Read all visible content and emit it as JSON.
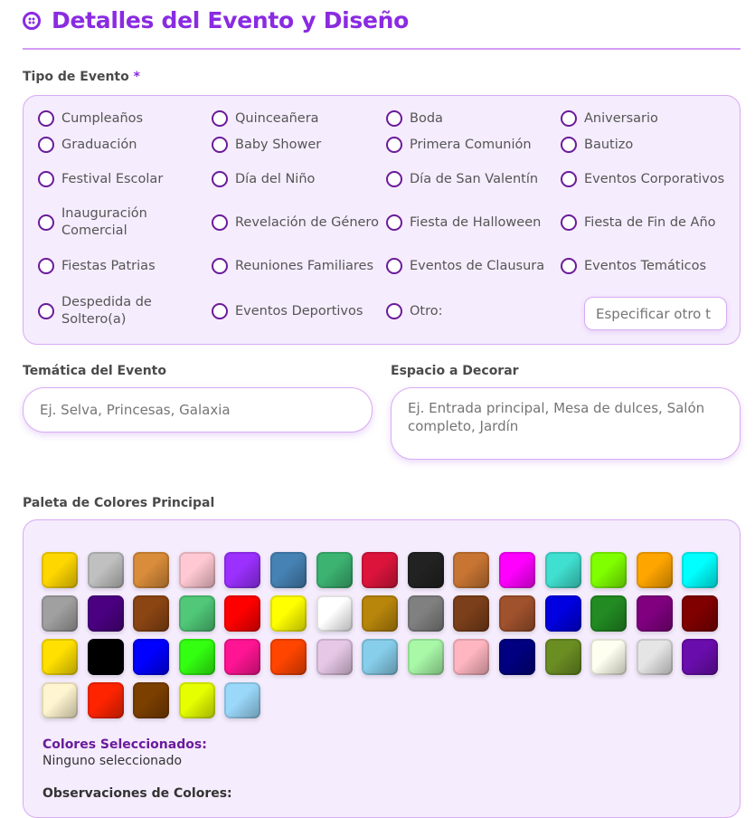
{
  "header": {
    "title": "Detalles del Evento y Diseño",
    "icon": "palette-icon"
  },
  "event_type": {
    "label": "Tipo de Evento",
    "required_mark": "*",
    "options": [
      [
        "Cumpleaños",
        "Quinceañera",
        "Boda",
        "Aniversario"
      ],
      [
        "Graduación",
        "Baby Shower",
        "Primera Comunión",
        "Bautizo"
      ],
      [
        "Festival Escolar",
        "Día del Niño",
        "Día de San Valentín",
        "Eventos Corporativos"
      ],
      [
        "Inauguración Comercial",
        "Revelación de Género",
        "Fiesta de Halloween",
        "Fiesta de Fin de Año"
      ],
      [
        "Fiestas Patrias",
        "Reuniones Familiares",
        "Eventos de Clausura",
        "Eventos Temáticos"
      ],
      [
        "Despedida de Soltero(a)",
        "Eventos Deportivos",
        "Otro:"
      ]
    ],
    "other_placeholder": "Especificar otro t"
  },
  "theme": {
    "label": "Temática del Evento",
    "placeholder": "Ej. Selva, Princesas, Galaxia",
    "value": ""
  },
  "space": {
    "label": "Espacio a Decorar",
    "placeholder": "Ej. Entrada principal, Mesa de dulces, Salón completo, Jardín",
    "value": ""
  },
  "palette": {
    "label": "Paleta de Colores Principal",
    "colors": [
      "#ffd700",
      "#c0c0c0",
      "#d98c3a",
      "#ffc8d2",
      "#9b30ff",
      "#4682b4",
      "#3cb371",
      "#dc143c",
      "#222222",
      "#c87533",
      "#ff00ff",
      "#40e0d0",
      "#7fff00",
      "#ffa500",
      "#00ffff",
      "#a0a0a0",
      "#4b0082",
      "#8b4513",
      "#50c878",
      "#ff0000",
      "#ffff00",
      "#ffffff",
      "#b8860b",
      "#808080",
      "#7b3f1a",
      "#a0522d",
      "#0000e0",
      "#228b22",
      "#800080",
      "#800000",
      "#ffe000",
      "#000000",
      "#0000ff",
      "#33ff11",
      "#ff1493",
      "#ff4500",
      "#e6c8e6",
      "#87ceeb",
      "#a8f8a8",
      "#ffb6c1",
      "#000080",
      "#6b8e23",
      "#fffff0",
      "#e5e5e5",
      "#6a0dad",
      "#fff5d0",
      "#ff2400",
      "#7b3f00",
      "#e6ff00",
      "#9ad8fa"
    ],
    "selected_label": "Colores Seleccionados:",
    "selected_value": "Ninguno seleccionado",
    "observations_label": "Observaciones de Colores:"
  },
  "colors": {
    "accent": "#8a2be2",
    "panel_bg": "#f5ecfd",
    "radio": "#6a1b9a"
  }
}
